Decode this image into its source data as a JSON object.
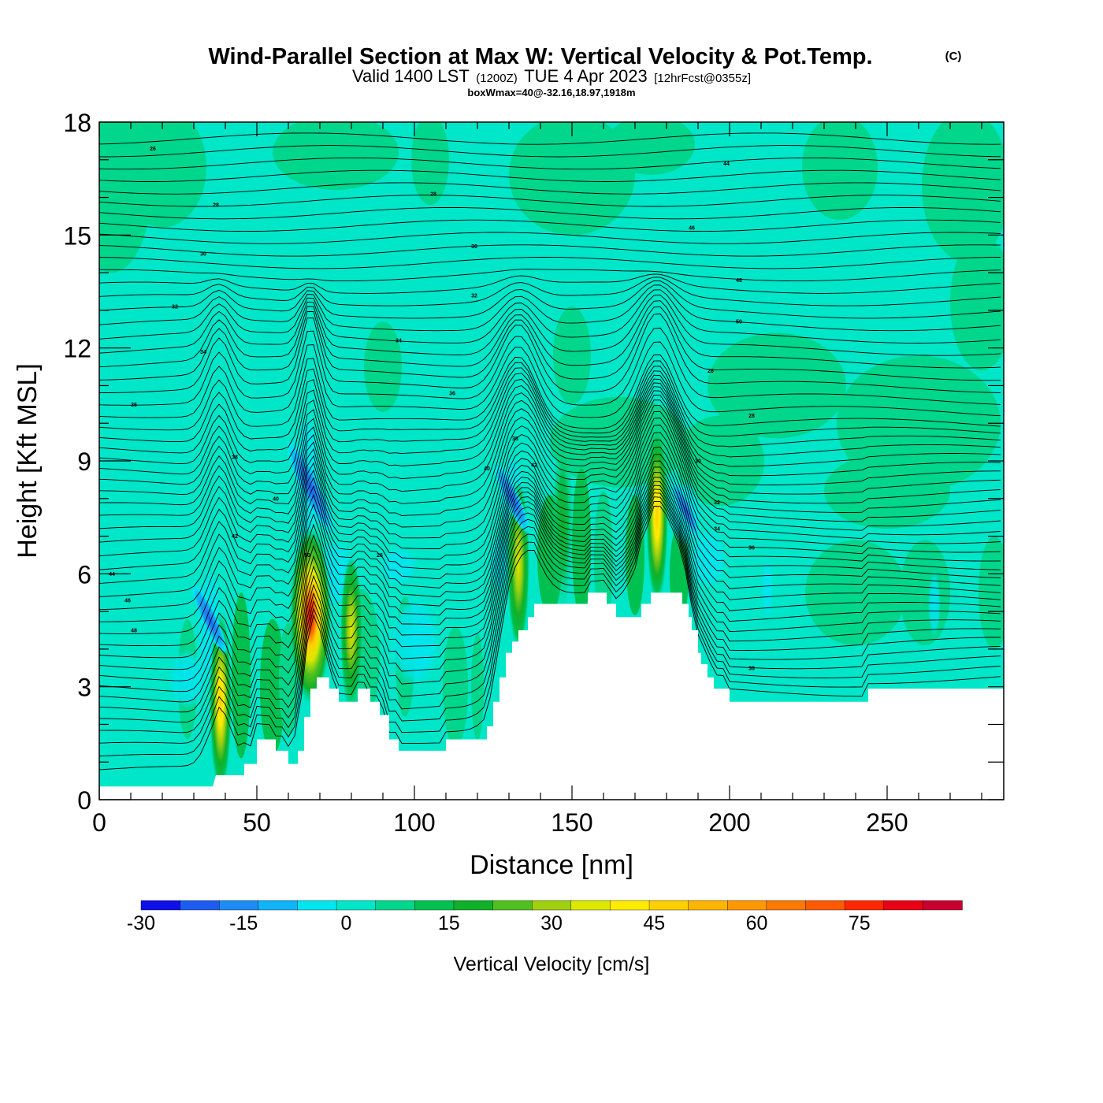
{
  "title": {
    "main": "Wind-Parallel Section at Max W: Vertical Velocity & Pot.Temp.",
    "copyright": "(C)",
    "valid_prefix": "Valid 1400 LST",
    "valid_zulu": "(1200Z)",
    "valid_date": "TUE 4 Apr 2023",
    "forecast": "[12hrFcst@0355z]",
    "box_info": "boxWmax=40@-32.16,18.97,1918m"
  },
  "chart_data": {
    "type": "heatmap",
    "xlabel": "Distance [nm]",
    "ylabel": "Height [Kft MSL]",
    "xlim": [
      0,
      287
    ],
    "ylim": [
      0,
      18
    ],
    "x_ticks": [
      0,
      50,
      100,
      150,
      200,
      250
    ],
    "y_ticks": [
      0,
      3,
      6,
      9,
      12,
      15,
      18
    ],
    "colorbar": {
      "title": "Vertical Velocity [cm/s]",
      "range": [
        -30,
        90
      ],
      "tick_values": [
        -30,
        -15,
        0,
        15,
        30,
        45,
        60,
        75
      ],
      "tick_labels": [
        "-30",
        "-15",
        "0",
        "15",
        "30",
        "45",
        "60",
        "75"
      ],
      "colors": [
        "#1010e8",
        "#1e5cf0",
        "#1e8cf5",
        "#10b4f8",
        "#00e6f0",
        "#00e6c8",
        "#00d68c",
        "#00c050",
        "#10b028",
        "#50c020",
        "#a0d010",
        "#dce800",
        "#ffec00",
        "#ffd000",
        "#ffb400",
        "#ff9800",
        "#ff7800",
        "#ff5a00",
        "#ff2800",
        "#e80014",
        "#c80030"
      ]
    },
    "terrain_top_kft": [
      [
        0,
        0.35
      ],
      [
        36,
        0.35
      ],
      [
        37,
        0.65
      ],
      [
        46,
        0.65
      ],
      [
        46,
        0.95
      ],
      [
        50,
        0.95
      ],
      [
        50,
        1.6
      ],
      [
        56,
        1.6
      ],
      [
        56,
        1.3
      ],
      [
        60,
        1.3
      ],
      [
        60,
        0.95
      ],
      [
        63,
        0.95
      ],
      [
        63,
        1.3
      ],
      [
        65,
        1.3
      ],
      [
        65,
        2.2
      ],
      [
        67,
        2.2
      ],
      [
        67,
        2.95
      ],
      [
        69,
        2.95
      ],
      [
        69,
        3.25
      ],
      [
        73,
        3.25
      ],
      [
        73,
        2.95
      ],
      [
        76,
        2.95
      ],
      [
        76,
        2.6
      ],
      [
        82,
        2.6
      ],
      [
        82,
        2.95
      ],
      [
        86,
        2.95
      ],
      [
        86,
        2.6
      ],
      [
        89,
        2.6
      ],
      [
        89,
        2.25
      ],
      [
        92,
        2.25
      ],
      [
        92,
        1.6
      ],
      [
        95,
        1.6
      ],
      [
        95,
        1.3
      ],
      [
        110,
        1.3
      ],
      [
        110,
        1.6
      ],
      [
        123,
        1.6
      ],
      [
        123,
        1.95
      ],
      [
        125,
        1.95
      ],
      [
        125,
        2.6
      ],
      [
        127,
        2.6
      ],
      [
        127,
        3.25
      ],
      [
        129,
        3.25
      ],
      [
        129,
        3.9
      ],
      [
        131,
        3.9
      ],
      [
        131,
        4.2
      ],
      [
        133,
        4.2
      ],
      [
        133,
        4.5
      ],
      [
        136,
        4.5
      ],
      [
        136,
        4.85
      ],
      [
        138,
        4.85
      ],
      [
        138,
        5.2
      ],
      [
        155,
        5.2
      ],
      [
        155,
        5.5
      ],
      [
        161,
        5.5
      ],
      [
        161,
        5.2
      ],
      [
        164,
        5.2
      ],
      [
        164,
        4.85
      ],
      [
        172,
        4.85
      ],
      [
        172,
        5.2
      ],
      [
        175,
        5.2
      ],
      [
        175,
        5.5
      ],
      [
        185,
        5.5
      ],
      [
        185,
        5.2
      ],
      [
        187,
        5.2
      ],
      [
        187,
        4.85
      ],
      [
        188,
        4.85
      ],
      [
        188,
        4.5
      ],
      [
        190,
        4.5
      ],
      [
        190,
        3.9
      ],
      [
        191,
        3.9
      ],
      [
        191,
        3.6
      ],
      [
        193,
        3.6
      ],
      [
        193,
        3.25
      ],
      [
        195,
        3.25
      ],
      [
        195,
        2.95
      ],
      [
        200,
        2.95
      ],
      [
        200,
        2.6
      ],
      [
        244,
        2.6
      ],
      [
        244,
        2.95
      ],
      [
        287,
        2.95
      ]
    ],
    "updraft_cores": [
      {
        "x": 38.5,
        "z_bottom": 0.7,
        "z_top": 4.5,
        "w_max": 40
      },
      {
        "x": 67,
        "z_bottom": 3.0,
        "z_top": 6.8,
        "w_max": 80
      },
      {
        "x": 80,
        "z_bottom": 3.0,
        "z_top": 6.0,
        "w_max": 30
      },
      {
        "x": 133,
        "z_bottom": 4.5,
        "z_top": 8.0,
        "w_max": 35
      },
      {
        "x": 147,
        "z_bottom": 5.5,
        "z_top": 9.2,
        "w_max": 20
      },
      {
        "x": 177,
        "z_bottom": 5.7,
        "z_top": 9.4,
        "w_max": 42
      }
    ],
    "downdraft_cores": [
      {
        "x": 35,
        "z": 4.8,
        "w_min": -15
      },
      {
        "x": 67,
        "z": 8.3,
        "w_min": -20
      },
      {
        "x": 131,
        "z": 8.0,
        "w_min": -15
      },
      {
        "x": 186,
        "z": 7.7,
        "w_min": -12
      }
    ],
    "theta_contours_c": [
      22,
      24,
      26,
      28,
      30,
      32,
      34,
      36,
      38,
      40,
      42,
      44,
      46,
      48,
      50
    ],
    "contour_labels": [
      "26",
      "28",
      "30",
      "32",
      "34",
      "36",
      "38",
      "40",
      "42",
      "44",
      "46",
      "48",
      "50"
    ]
  }
}
